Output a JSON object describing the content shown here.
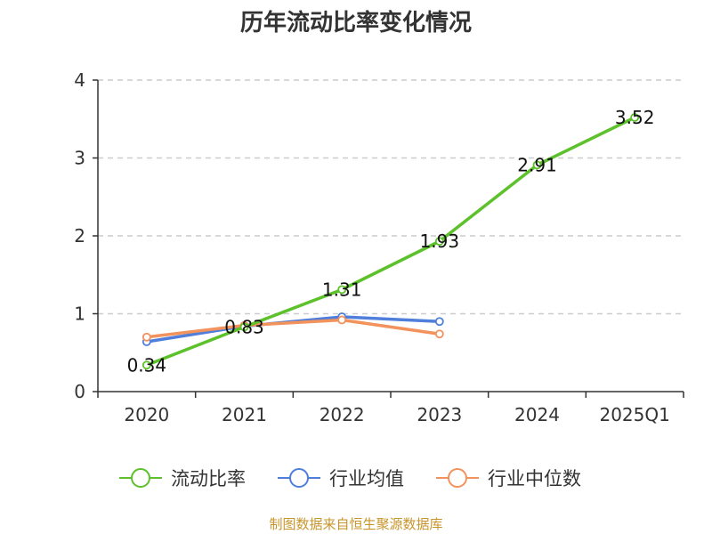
{
  "chart_data": {
    "type": "line",
    "title": "历年流动比率变化情况",
    "categories": [
      "2020",
      "2021",
      "2022",
      "2023",
      "2024",
      "2025Q1"
    ],
    "ylim": [
      0,
      4
    ],
    "yticks": [
      "0",
      "1",
      "2",
      "3",
      "4"
    ],
    "grid": true,
    "legend_position": "bottom",
    "series": [
      {
        "name": "流动比率",
        "color": "#5cc12a",
        "values": [
          0.34,
          0.83,
          1.31,
          1.93,
          2.91,
          3.52
        ],
        "labels": [
          "0.34",
          "0.83",
          "1.31",
          "1.93",
          "2.91",
          "3.52"
        ]
      },
      {
        "name": "行业均值",
        "color": "#4f7fdb",
        "values": [
          0.64,
          0.84,
          0.96,
          0.9,
          null,
          null
        ]
      },
      {
        "name": "行业中位数",
        "color": "#f2925d",
        "values": [
          0.7,
          0.85,
          0.92,
          0.74,
          null,
          null
        ]
      }
    ],
    "source": "制图数据来自恒生聚源数据库"
  }
}
